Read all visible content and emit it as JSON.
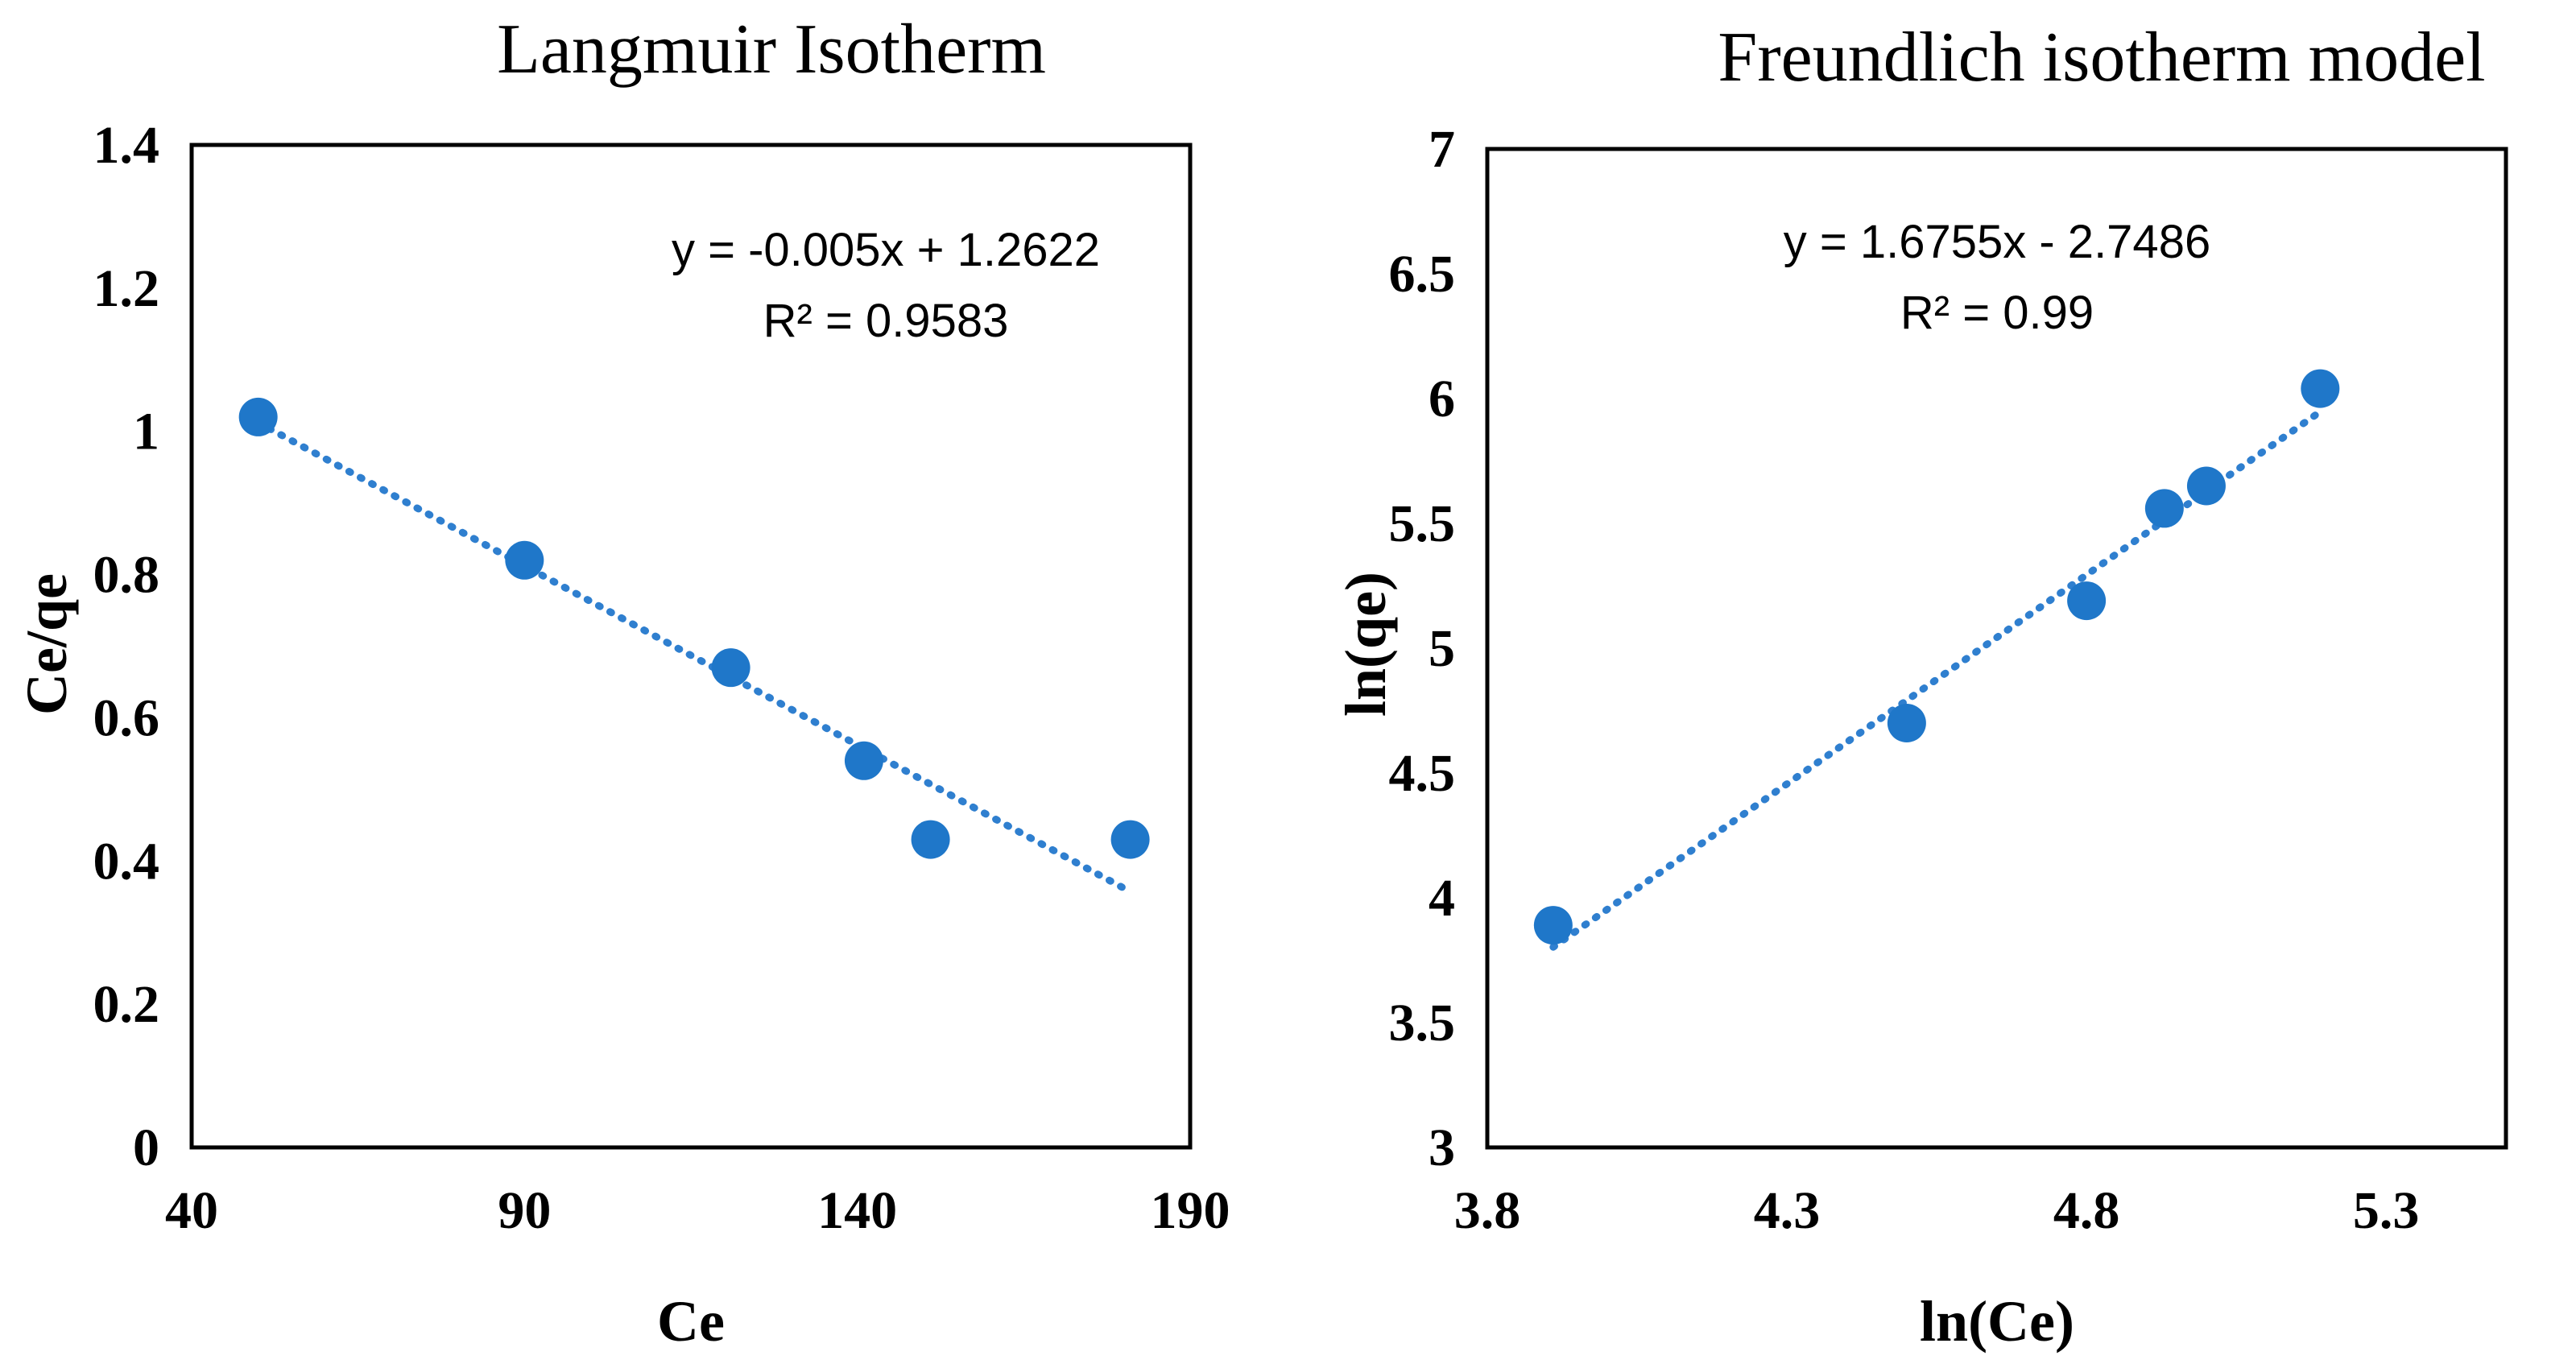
{
  "colors": {
    "marker": "#1F77C9",
    "trendline": "#2F7FCF",
    "axis": "#000000"
  },
  "chart_data": [
    {
      "type": "scatter",
      "title": "Langmuir Isotherm",
      "xlabel": "Ce",
      "ylabel": "Ce/qe",
      "xlim": [
        40,
        190
      ],
      "ylim": [
        0,
        1.4
      ],
      "xticks": [
        40,
        90,
        140,
        190
      ],
      "yticks": [
        0,
        0.2,
        0.4,
        0.6,
        0.8,
        1,
        1.2,
        1.4
      ],
      "xtick_labels": [
        "40",
        "90",
        "140",
        "190"
      ],
      "ytick_labels": [
        "0",
        "0.2",
        "0.4",
        "0.6",
        "0.8",
        "1",
        "1.2",
        "1.4"
      ],
      "x": [
        50,
        90,
        121,
        141,
        151,
        181
      ],
      "y": [
        1.02,
        0.82,
        0.67,
        0.54,
        0.43,
        0.43
      ],
      "trendline": {
        "style": "dotted",
        "x_range": [
          50,
          180
        ],
        "slope": -0.005,
        "intercept": 1.2622
      },
      "equation": "y = -0.005x + 1.2622",
      "r_squared": "R² = 0.9583",
      "grid": false,
      "legend": "none"
    },
    {
      "type": "scatter",
      "title": "Freundlich isotherm model",
      "xlabel": "ln(Ce)",
      "ylabel": "ln(qe)",
      "xlim": [
        3.8,
        5.5
      ],
      "ylim": [
        3,
        7
      ],
      "xticks": [
        3.8,
        4.3,
        4.8,
        5.3
      ],
      "yticks": [
        3,
        3.5,
        4,
        4.5,
        5,
        5.5,
        6,
        6.5,
        7
      ],
      "xtick_labels": [
        "3.8",
        "4.3",
        "4.8",
        "5.3"
      ],
      "ytick_labels": [
        "3",
        "3.5",
        "4",
        "4.5",
        "5",
        "5.5",
        "6",
        "6.5",
        "7"
      ],
      "x": [
        3.91,
        4.5,
        4.8,
        4.93,
        5.0,
        5.19
      ],
      "y": [
        3.89,
        4.7,
        5.19,
        5.56,
        5.65,
        6.04
      ],
      "trendline": {
        "style": "dotted",
        "x_range": [
          3.91,
          5.19
        ],
        "slope": 1.6755,
        "intercept": -2.7486
      },
      "equation": "y = 1.6755x - 2.7486",
      "r_squared": "R² = 0.99",
      "grid": false,
      "legend": "none"
    }
  ]
}
